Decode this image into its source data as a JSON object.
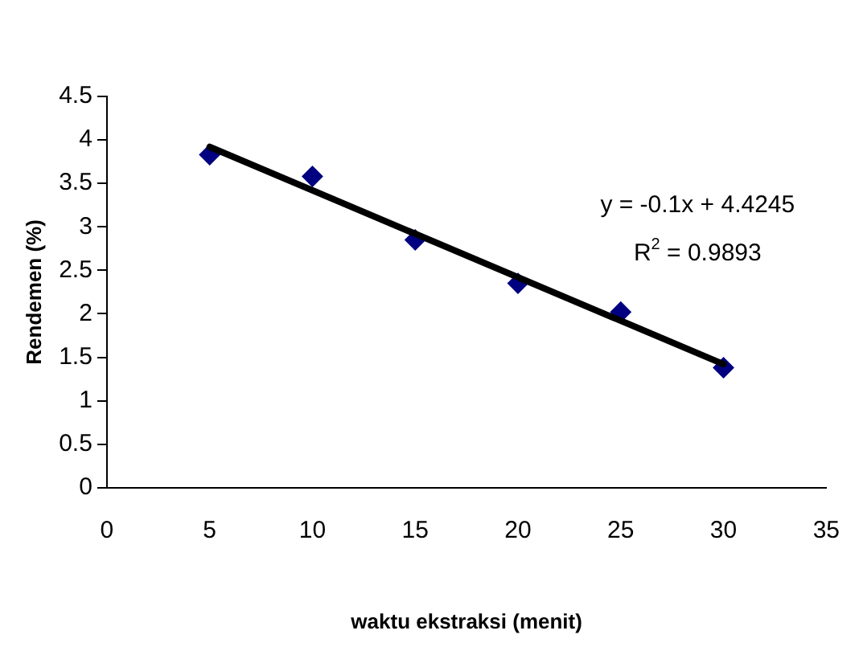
{
  "chart_data": {
    "type": "scatter",
    "xlabel": "waktu ekstraksi (menit)",
    "ylabel": "Rendemen (%)",
    "xlim": [
      0,
      35
    ],
    "xticks": [
      0,
      5,
      10,
      15,
      20,
      25,
      30,
      35
    ],
    "ylim": [
      0,
      4.5
    ],
    "yticks": [
      0,
      0.5,
      1,
      1.5,
      2,
      2.5,
      3,
      3.5,
      4,
      4.5
    ],
    "grid": false,
    "legend": false,
    "marker": "diamond",
    "series": [
      {
        "color": "#000080",
        "x": [
          5,
          10,
          15,
          20,
          25,
          30
        ],
        "values": [
          3.83,
          3.58,
          2.85,
          2.35,
          2.02,
          1.38
        ]
      },
      {
        "type": "line",
        "color": "#000000",
        "marker": "none",
        "x": [
          5,
          30
        ],
        "values": [
          3.92,
          1.42
        ]
      }
    ],
    "annotations": [
      "y = -0.1x + 4.4245",
      "R$^{2}$ = 0.9893"
    ]
  }
}
